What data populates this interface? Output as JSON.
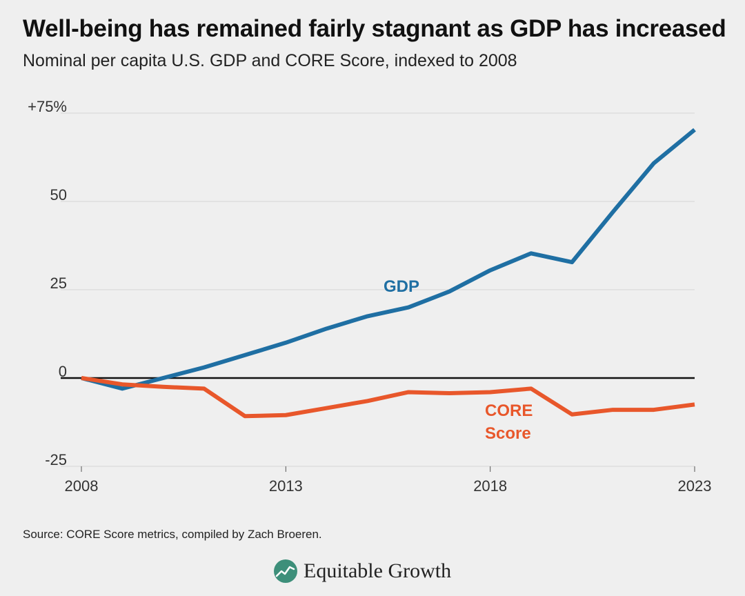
{
  "header": {
    "title": "Well-being has remained fairly stagnant as GDP has increased",
    "subtitle": "Nominal per capita U.S. GDP and CORE Score, indexed to 2008"
  },
  "footer": {
    "source": "Source: CORE Score metrics, compiled by Zach Broeren.",
    "brand": "Equitable Growth",
    "brand_color": "#3d8f7a"
  },
  "chart_data": {
    "type": "line",
    "title": "Well-being has remained fairly stagnant as GDP has increased",
    "subtitle": "Nominal per capita U.S. GDP and CORE Score, indexed to 2008",
    "xlabel": "",
    "ylabel": "",
    "x": [
      2008,
      2009,
      2010,
      2011,
      2012,
      2013,
      2014,
      2015,
      2016,
      2017,
      2018,
      2019,
      2020,
      2021,
      2022,
      2023
    ],
    "xlim": [
      2008,
      2023
    ],
    "ylim": [
      -25,
      75
    ],
    "x_ticks": [
      "2008",
      "2013",
      "2018",
      "2023"
    ],
    "y_ticks": [
      "+75%",
      "50",
      "25",
      "0",
      "-25"
    ],
    "y_tick_values": [
      75,
      50,
      25,
      0,
      -25
    ],
    "grid": true,
    "zero_line": true,
    "series": [
      {
        "name": "GDP",
        "label_lines": [
          "GDP"
        ],
        "color": "#1f6fa3",
        "values": [
          0,
          -3,
          0,
          3,
          6.5,
          10,
          14,
          17.5,
          20,
          24.5,
          30.5,
          35.3,
          32.8,
          47,
          60.8,
          70.3
        ]
      },
      {
        "name": "CORE Score",
        "label_lines": [
          "CORE",
          "Score"
        ],
        "color": "#e8572b",
        "values": [
          0,
          -1.8,
          -2.5,
          -3,
          -10.8,
          -10.5,
          -8.5,
          -6.5,
          -4,
          -4.3,
          -4,
          -3,
          -10.3,
          -9,
          -9,
          -7.5
        ]
      }
    ]
  }
}
